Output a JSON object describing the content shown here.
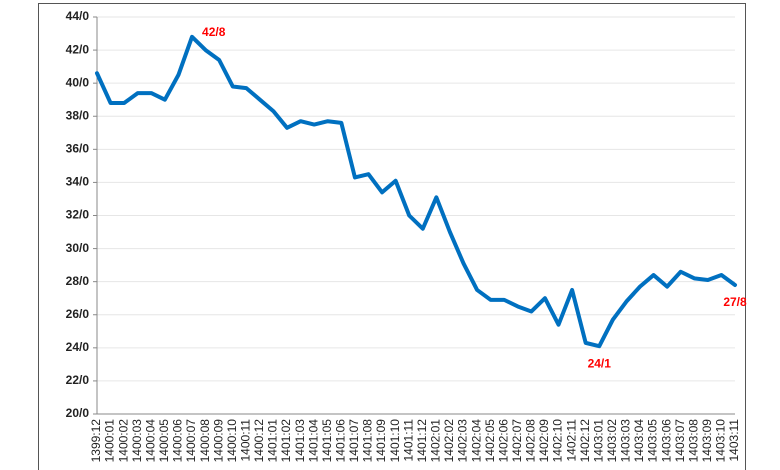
{
  "chart_data": {
    "type": "line",
    "categories": [
      "1399:12",
      "1400:01",
      "1400:02",
      "1400:03",
      "1400:04",
      "1400:05",
      "1400:06",
      "1400:07",
      "1400:08",
      "1400:09",
      "1400:10",
      "1400:11",
      "1400:12",
      "1401:01",
      "1401:02",
      "1401:03",
      "1401:04",
      "1401:05",
      "1401:06",
      "1401:07",
      "1401:08",
      "1401:09",
      "1401:10",
      "1401:11",
      "1401:12",
      "1402:01",
      "1402:02",
      "1402:03",
      "1402:04",
      "1402:05",
      "1402:06",
      "1402:07",
      "1402:08",
      "1402:09",
      "1402:10",
      "1402:11",
      "1402:12",
      "1403:01",
      "1403:02",
      "1403:03",
      "1403:04",
      "1403:05",
      "1403:06",
      "1403:07",
      "1403:08",
      "1403:09",
      "1403:10",
      "1403:11"
    ],
    "values": [
      40.6,
      38.8,
      38.8,
      39.4,
      39.4,
      39.0,
      40.5,
      42.8,
      42.0,
      41.4,
      39.8,
      39.7,
      39.0,
      38.3,
      37.3,
      37.7,
      37.5,
      37.7,
      37.6,
      34.3,
      34.5,
      33.4,
      34.1,
      32.0,
      31.2,
      33.1,
      31.0,
      29.1,
      27.5,
      26.9,
      26.9,
      26.5,
      26.2,
      27.0,
      25.4,
      27.5,
      24.3,
      24.1,
      25.7,
      26.8,
      27.7,
      28.4,
      27.7,
      28.6,
      28.2,
      28.1,
      28.4,
      27.8
    ],
    "value_labels": [
      null,
      null,
      null,
      null,
      null,
      null,
      null,
      "42/8",
      null,
      null,
      null,
      null,
      null,
      null,
      null,
      null,
      null,
      null,
      null,
      null,
      null,
      null,
      null,
      null,
      null,
      null,
      null,
      null,
      null,
      null,
      null,
      null,
      null,
      null,
      null,
      null,
      null,
      "24/1",
      null,
      null,
      null,
      null,
      null,
      null,
      null,
      null,
      null,
      "27/8"
    ],
    "color": "#0070c0",
    "label_color": "#ff0000",
    "ylim": [
      20,
      44
    ],
    "yticks": [
      {
        "value": 20,
        "label": "20/0"
      },
      {
        "value": 22,
        "label": "22/0"
      },
      {
        "value": 24,
        "label": "24/0"
      },
      {
        "value": 26,
        "label": "26/0"
      },
      {
        "value": 28,
        "label": "28/0"
      },
      {
        "value": 30,
        "label": "30/0"
      },
      {
        "value": 32,
        "label": "32/0"
      },
      {
        "value": 34,
        "label": "34/0"
      },
      {
        "value": 36,
        "label": "36/0"
      },
      {
        "value": 38,
        "label": "38/0"
      },
      {
        "value": 40,
        "label": "40/0"
      },
      {
        "value": 42,
        "label": "42/0"
      },
      {
        "value": 44,
        "label": "44/0"
      }
    ],
    "grid": true
  }
}
